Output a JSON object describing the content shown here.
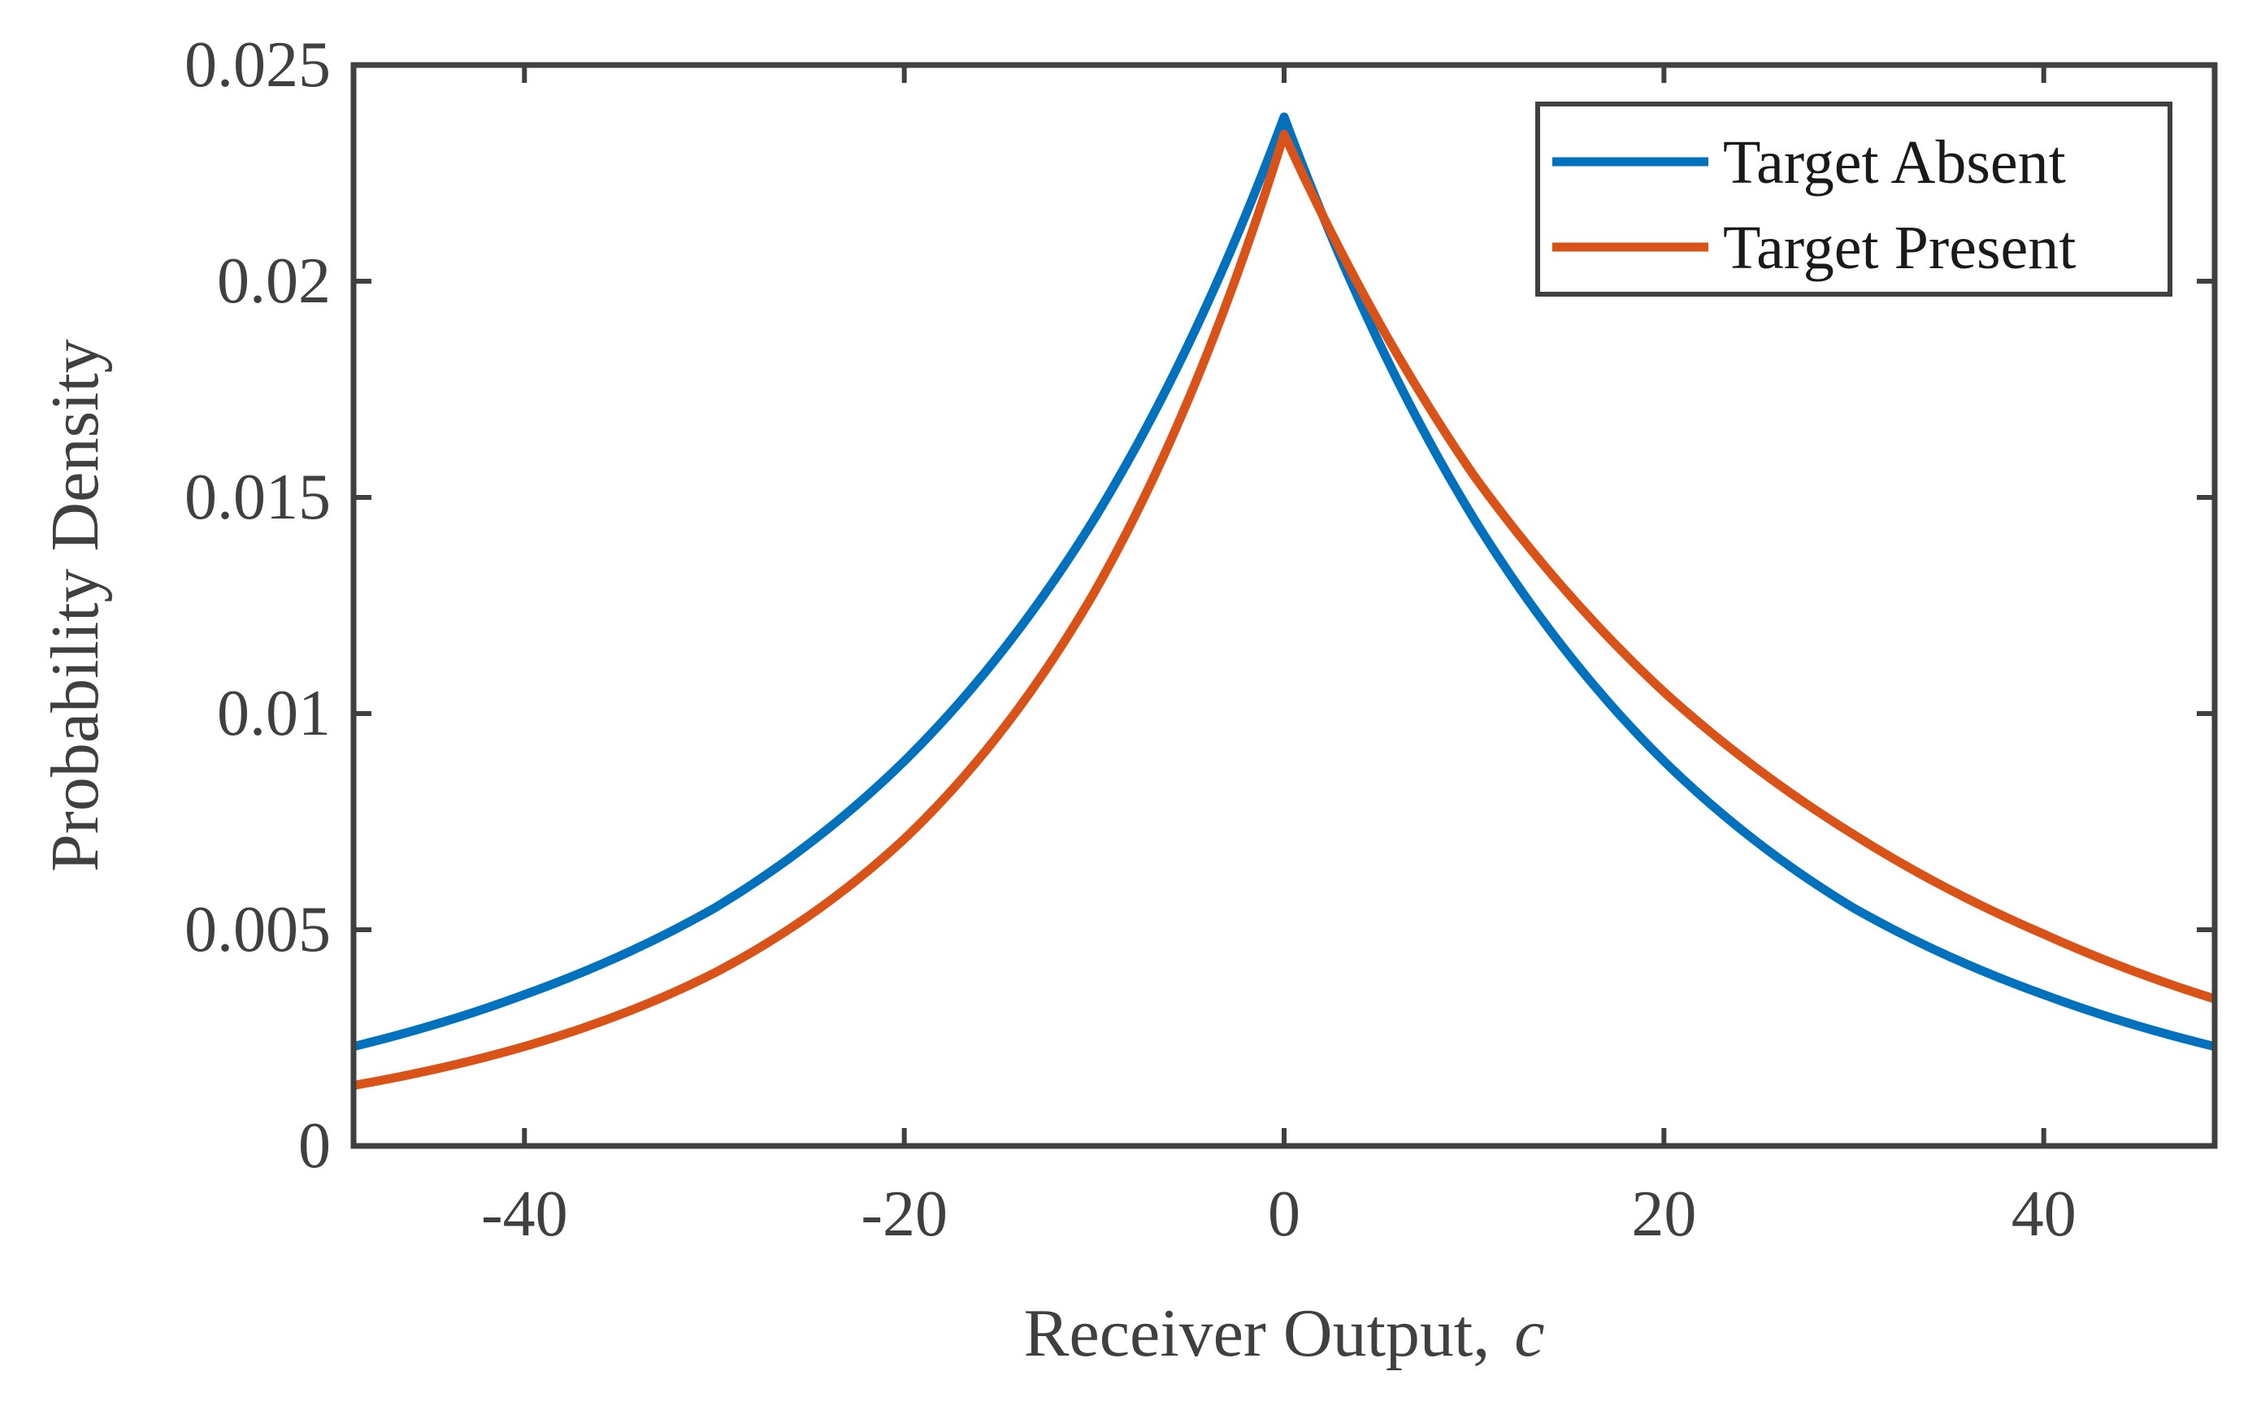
{
  "chart_data": {
    "type": "line",
    "title": "",
    "xlabel": "Receiver Output,",
    "xlabel_var": "c",
    "ylabel": "Probability Density",
    "xlim": [
      -49,
      49
    ],
    "ylim": [
      0,
      0.025
    ],
    "xticks": [
      -40,
      -20,
      0,
      20,
      40
    ],
    "xtick_labels": [
      "-40",
      "-20",
      "0",
      "20",
      "40"
    ],
    "yticks": [
      0,
      0.005,
      0.01,
      0.015,
      0.02,
      0.025
    ],
    "ytick_labels": [
      "0",
      "0.005",
      "0.01",
      "0.015",
      "0.02",
      "0.025"
    ],
    "grid": false,
    "legend_position": "top-right",
    "x": [
      -49,
      -40,
      -30,
      -20,
      -10,
      0,
      10,
      20,
      30,
      40,
      49
    ],
    "series": [
      {
        "name": "Target Absent",
        "color": "#0072BD",
        "values": [
          0.0023,
          0.0035,
          0.0055,
          0.0089,
          0.0145,
          0.0238,
          0.0145,
          0.0089,
          0.0055,
          0.0035,
          0.0023
        ]
      },
      {
        "name": "Target Present",
        "color": "#D95319",
        "values": [
          0.0014,
          0.0023,
          0.004,
          0.0071,
          0.0128,
          0.0234,
          0.0155,
          0.0105,
          0.0072,
          0.0049,
          0.0034
        ]
      }
    ]
  }
}
